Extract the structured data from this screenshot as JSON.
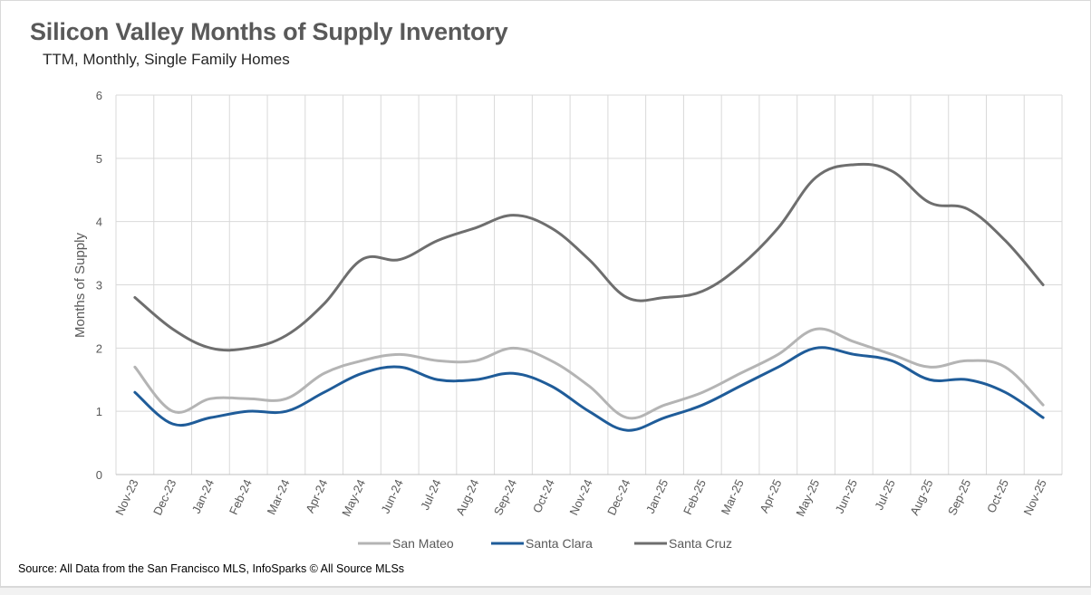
{
  "chart_data": {
    "type": "line",
    "title": "Silicon Valley Months of Supply Inventory",
    "subtitle": "TTM, Monthly, Single Family Homes",
    "ylabel": "Months of Supply",
    "xlabel": "",
    "ylim": [
      0,
      6
    ],
    "yticks": [
      "0",
      "1",
      "2",
      "3",
      "4",
      "5",
      "6"
    ],
    "grid": true,
    "legend_position": "bottom",
    "categories": [
      "Nov-23",
      "Dec-23",
      "Jan-24",
      "Feb-24",
      "Mar-24",
      "Apr-24",
      "May-24",
      "Jun-24",
      "Jul-24",
      "Aug-24",
      "Sep-24",
      "Oct-24",
      "Nov-24",
      "Dec-24",
      "Jan-25",
      "Feb-25",
      "Mar-25",
      "Apr-25",
      "May-25",
      "Jun-25",
      "Jul-25",
      "Aug-25",
      "Sep-25",
      "Oct-25",
      "Nov-25"
    ],
    "series": [
      {
        "name": "San Mateo",
        "color": "#b4b4b4",
        "values": [
          1.7,
          1.0,
          1.2,
          1.2,
          1.2,
          1.6,
          1.8,
          1.9,
          1.8,
          1.8,
          2.0,
          1.8,
          1.4,
          0.9,
          1.1,
          1.3,
          1.6,
          1.9,
          2.3,
          2.1,
          1.9,
          1.7,
          1.8,
          1.7,
          1.1
        ]
      },
      {
        "name": "Santa Clara",
        "color": "#1f5c99",
        "values": [
          1.3,
          0.8,
          0.9,
          1.0,
          1.0,
          1.3,
          1.6,
          1.7,
          1.5,
          1.5,
          1.6,
          1.4,
          1.0,
          0.7,
          0.9,
          1.1,
          1.4,
          1.7,
          2.0,
          1.9,
          1.8,
          1.5,
          1.5,
          1.3,
          0.9
        ]
      },
      {
        "name": "Santa Cruz",
        "color": "#6e6e6e",
        "values": [
          2.8,
          2.3,
          2.0,
          2.0,
          2.2,
          2.7,
          3.4,
          3.4,
          3.7,
          3.9,
          4.1,
          3.9,
          3.4,
          2.8,
          2.8,
          2.9,
          3.3,
          3.9,
          4.7,
          4.9,
          4.8,
          4.3,
          4.2,
          3.7,
          3.0
        ]
      }
    ]
  },
  "footer": {
    "source": "Source: All Data from the San Francisco MLS, InfoSparks © All Source MLSs"
  }
}
